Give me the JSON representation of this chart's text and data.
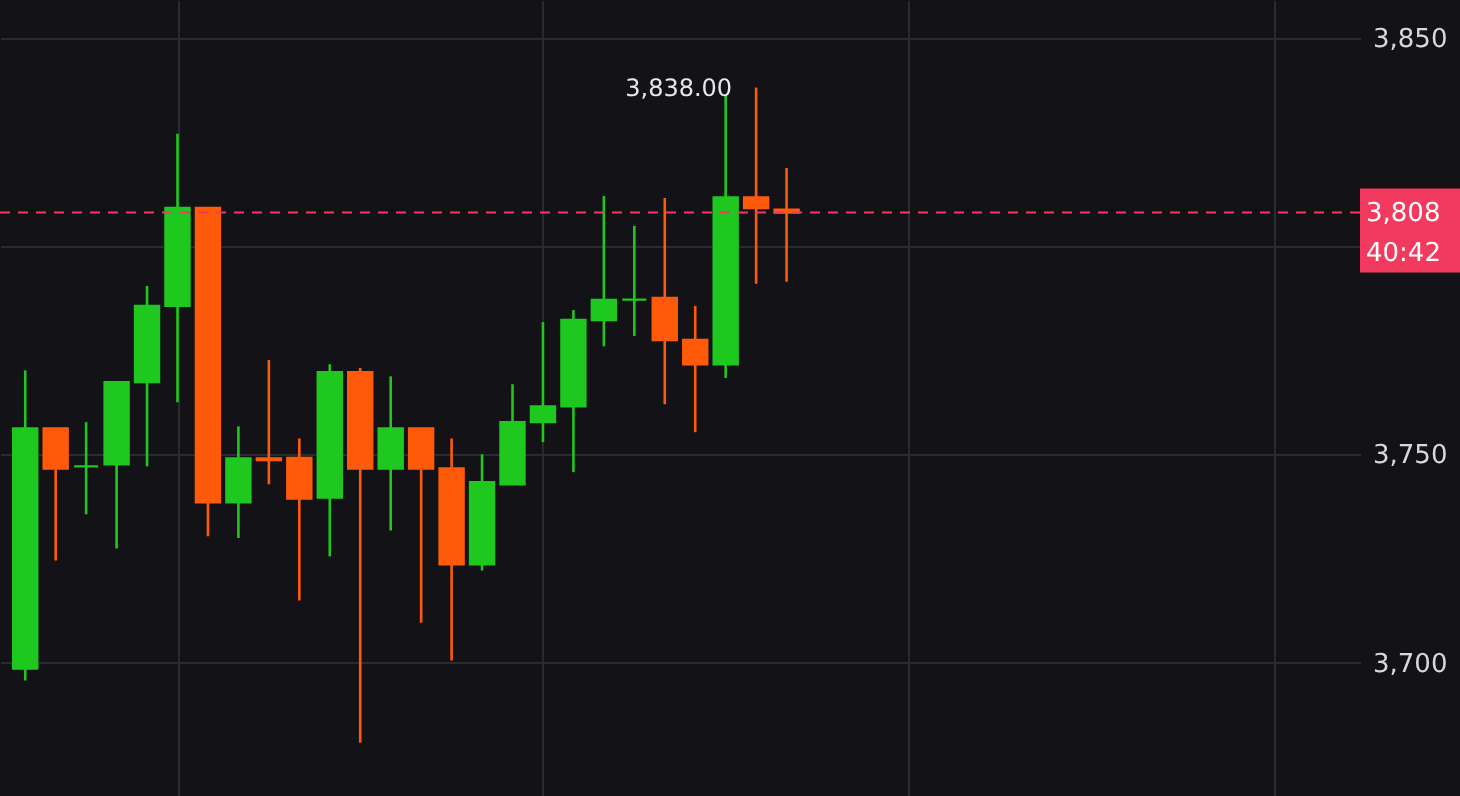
{
  "chart_data": {
    "type": "candlestick",
    "categories": [
      null,
      null,
      null,
      null,
      null,
      null,
      null,
      null,
      null,
      null,
      null,
      null,
      null,
      null,
      null,
      null,
      null,
      null,
      null,
      null,
      null,
      null,
      null,
      null,
      null,
      null,
      null,
      null,
      null,
      null,
      null,
      null,
      null,
      null,
      null,
      null,
      null,
      null,
      null,
      null,
      null,
      null,
      null,
      null
    ],
    "ohlc": [
      [
        3698.6,
        3770.1,
        3695.7,
        3756.2
      ],
      [
        3756.2,
        3756.2,
        3724.5,
        3746.6
      ],
      [
        3747.1,
        3757.7,
        3735.6,
        3747.1
      ],
      [
        3747.6,
        3767.3,
        3727.4,
        3767.3
      ],
      [
        3767.3,
        3790.4,
        3747.1,
        3785.6
      ],
      [
        3785.6,
        3826.9,
        3762.5,
        3809.1
      ],
      [
        3809.1,
        3809.1,
        3730.3,
        3738.5
      ],
      [
        3738.5,
        3756.7,
        3729.9,
        3749.0
      ],
      [
        3749.0,
        3772.6,
        3742.8,
        3748.6
      ],
      [
        3749.1,
        3753.8,
        3714.9,
        3739.4
      ],
      [
        3739.6,
        3771.6,
        3725.5,
        3769.7
      ],
      [
        3769.7,
        3770.7,
        3680.8,
        3746.6
      ],
      [
        3746.6,
        3768.7,
        3731.7,
        3756.2
      ],
      [
        3756.2,
        3756.2,
        3709.6,
        3746.6
      ],
      [
        3746.6,
        3753.8,
        3700.5,
        3723.6
      ],
      [
        3723.6,
        3750.0,
        3722.1,
        3743.3
      ],
      [
        3742.8,
        3766.8,
        3742.8,
        3757.7
      ],
      [
        3757.7,
        3781.7,
        3752.9,
        3761.5
      ],
      [
        3761.5,
        3784.6,
        3745.7,
        3782.2
      ],
      [
        3782.2,
        3812.0,
        3775.9,
        3787.0
      ],
      [
        3787.1,
        3804.8,
        3778.4,
        3787.1
      ],
      [
        3787.5,
        3811.5,
        3762.0,
        3777.4
      ],
      [
        3777.4,
        3785.6,
        3755.3,
        3771.6
      ],
      [
        3771.6,
        3836.1,
        3768.3,
        3811.6
      ],
      [
        3811.6,
        3838.0,
        3790.9,
        3809.1
      ],
      [
        3808.7,
        3818.7,
        3791.4,
        3808.0
      ],
      null,
      null,
      null,
      null,
      null,
      null,
      null,
      null,
      null,
      null,
      null,
      null,
      null,
      null,
      null,
      null,
      null,
      null
    ],
    "colors": [
      "#1fc81f",
      "#ff5a0a",
      "#1fc81f",
      "#1fc81f",
      "#1fc81f",
      "#1fc81f",
      "#ff5a0a",
      "#1fc81f",
      "#ff5a0a",
      "#ff5a0a",
      "#1fc81f",
      "#ff5a0a",
      "#1fc81f",
      "#ff5a0a",
      "#ff5a0a",
      "#1fc81f",
      "#1fc81f",
      "#1fc81f",
      "#1fc81f",
      "#1fc81f",
      "#1fc81f",
      "#ff5a0a",
      "#ff5a0a",
      "#1fc81f",
      "#ff5a0a",
      "#ff5a0a",
      null,
      null,
      null,
      null,
      null,
      null,
      null,
      null,
      null,
      null,
      null,
      null,
      null,
      null,
      null,
      null,
      null,
      null
    ],
    "ylim": [
      3668,
      3859
    ],
    "yticks": [
      {
        "value": 3700,
        "label": "3,700"
      },
      {
        "value": 3750,
        "label": "3,750"
      },
      {
        "value": 3800,
        "label": null
      },
      {
        "value": 3850,
        "label": "3,850"
      }
    ],
    "grid": true,
    "tick_labels": "y",
    "ref_lines": [
      {
        "axis": "y",
        "value": 3808,
        "label": "3,808",
        "color": "#f23a5f",
        "line_style": "dashed"
      }
    ],
    "annotations": [
      "3,838.00",
      "40:42"
    ]
  }
}
